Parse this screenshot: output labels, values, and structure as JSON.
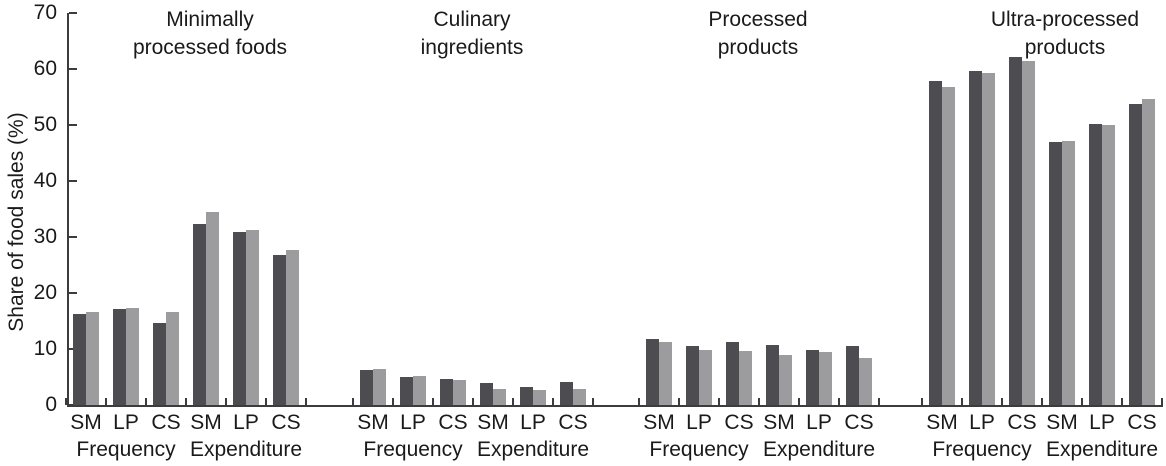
{
  "chart_data": {
    "type": "bar",
    "title": "",
    "xlabel": "",
    "ylabel": "Share of food sales (%)",
    "ylim": [
      0,
      70
    ],
    "yticks": [
      0,
      10,
      20,
      30,
      40,
      50,
      60,
      70
    ],
    "grid": false,
    "legend_position": "none",
    "series_names": [
      "dark",
      "light"
    ],
    "bar_labels": [
      "SM",
      "LP",
      "CS"
    ],
    "section_labels": [
      "Frequency",
      "Expenditure"
    ],
    "groups": [
      {
        "title_lines": [
          "Minimally",
          "processed foods"
        ],
        "sections": [
          {
            "label": "Frequency",
            "bars": [
              {
                "label": "SM",
                "values": [
                  16.2,
                  16.6
                ]
              },
              {
                "label": "LP",
                "values": [
                  17.1,
                  17.3
                ]
              },
              {
                "label": "CS",
                "values": [
                  14.7,
                  16.6
                ]
              }
            ]
          },
          {
            "label": "Expenditure",
            "bars": [
              {
                "label": "SM",
                "values": [
                  32.4,
                  34.4
                ]
              },
              {
                "label": "LP",
                "values": [
                  30.9,
                  31.2
                ]
              },
              {
                "label": "CS",
                "values": [
                  26.7,
                  27.6
                ]
              }
            ]
          }
        ]
      },
      {
        "title_lines": [
          "Culinary",
          "ingredients"
        ],
        "sections": [
          {
            "label": "Frequency",
            "bars": [
              {
                "label": "SM",
                "values": [
                  6.2,
                  6.5
                ]
              },
              {
                "label": "LP",
                "values": [
                  5.0,
                  5.2
                ]
              },
              {
                "label": "CS",
                "values": [
                  4.6,
                  4.4
                ]
              }
            ]
          },
          {
            "label": "Expenditure",
            "bars": [
              {
                "label": "SM",
                "values": [
                  3.9,
                  2.9
                ]
              },
              {
                "label": "LP",
                "values": [
                  3.2,
                  2.6
                ]
              },
              {
                "label": "CS",
                "values": [
                  4.1,
                  2.9
                ]
              }
            ]
          }
        ]
      },
      {
        "title_lines": [
          "Processed",
          "products"
        ],
        "sections": [
          {
            "label": "Frequency",
            "bars": [
              {
                "label": "SM",
                "values": [
                  11.8,
                  11.2
                ]
              },
              {
                "label": "LP",
                "values": [
                  10.5,
                  9.9
                ]
              },
              {
                "label": "CS",
                "values": [
                  11.3,
                  9.6
                ]
              }
            ]
          },
          {
            "label": "Expenditure",
            "bars": [
              {
                "label": "SM",
                "values": [
                  10.8,
                  8.9
                ]
              },
              {
                "label": "LP",
                "values": [
                  9.8,
                  9.5
                ]
              },
              {
                "label": "CS",
                "values": [
                  10.5,
                  8.4
                ]
              }
            ]
          }
        ]
      },
      {
        "title_lines": [
          "Ultra-processed",
          "products"
        ],
        "sections": [
          {
            "label": "Frequency",
            "bars": [
              {
                "label": "SM",
                "values": [
                  57.8,
                  56.8
                ]
              },
              {
                "label": "LP",
                "values": [
                  59.7,
                  59.2
                ]
              },
              {
                "label": "CS",
                "values": [
                  62.1,
                  61.4
                ]
              }
            ]
          },
          {
            "label": "Expenditure",
            "bars": [
              {
                "label": "SM",
                "values": [
                  47.0,
                  47.2
                ]
              },
              {
                "label": "LP",
                "values": [
                  50.2,
                  50.0
                ]
              },
              {
                "label": "CS",
                "values": [
                  53.7,
                  54.6
                ]
              }
            ]
          }
        ]
      }
    ],
    "colors": {
      "dark_bar": "#4c4c51",
      "light_bar": "#9c9c9e",
      "axis": "#3c3c3c",
      "text": "#1a1a1a"
    }
  }
}
